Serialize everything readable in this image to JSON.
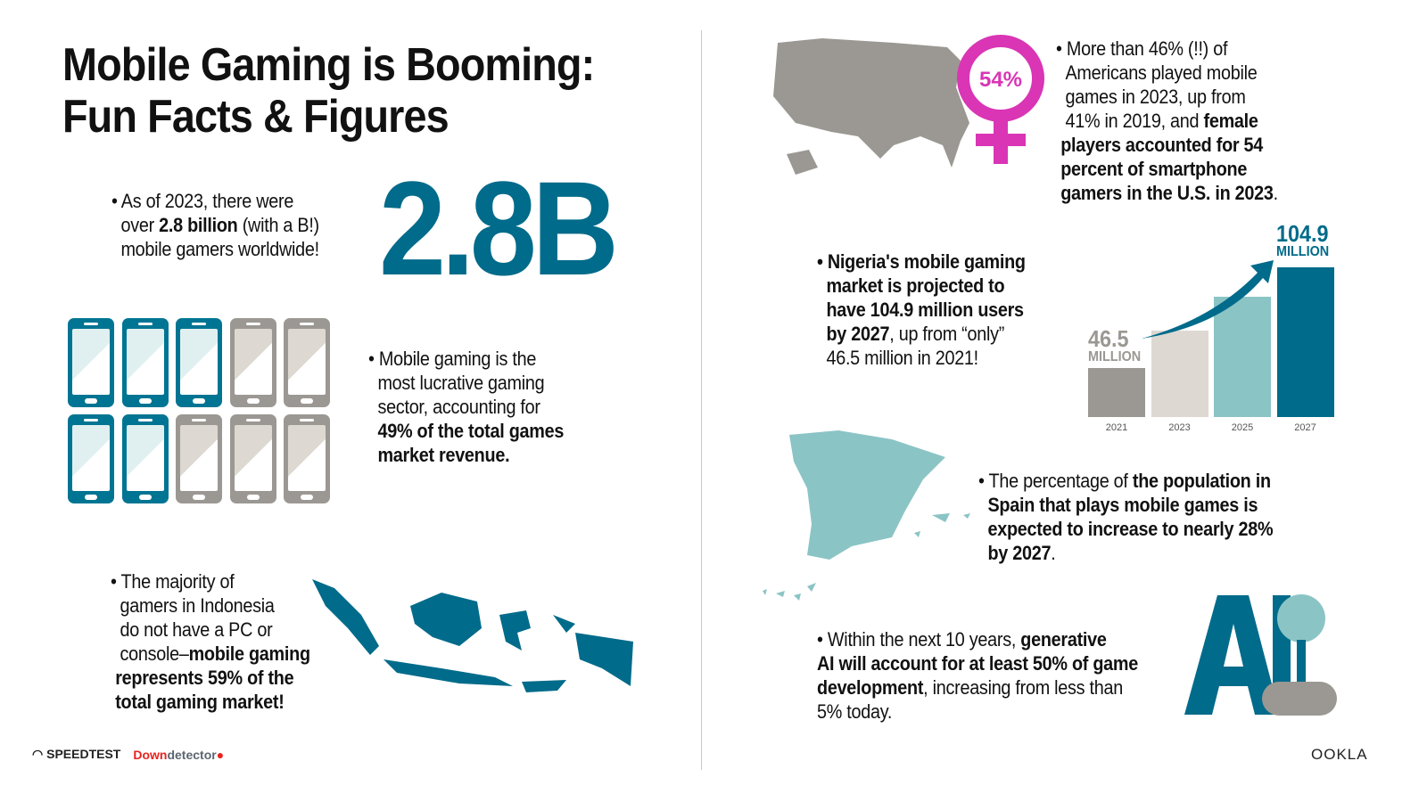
{
  "title": [
    "Mobile Gaming is Booming:",
    "Fun Facts & Figures"
  ],
  "fact_gamers": {
    "pre": "• As of 2023, there were",
    "over": "over ",
    "bold": "2.8 billion",
    "post": " (with a B!)",
    "line3": "mobile gamers worldwide!",
    "big_number": "2.8B"
  },
  "fact_revenue": {
    "l1": "• Mobile gaming is the",
    "l2": "most lucrative gaming",
    "l3": "sector, accounting for",
    "b1": "49% of the total games",
    "b2": "market revenue.",
    "phones_highlighted": 5,
    "phones_total": 10
  },
  "fact_indonesia": {
    "l1": "• The majority of",
    "l2": "gamers in Indonesia",
    "l3": "do not have a PC or",
    "l4": "console–",
    "b4": "mobile gaming",
    "b5": "represents 59% of the",
    "b6": "total gaming market!"
  },
  "fact_us": {
    "l1": "• More than 46% (!!) of",
    "l2": "Americans played mobile",
    "l3": "games in 2023, up from",
    "l4": "41% in 2019, and ",
    "b4": "female",
    "b5": "players accounted for 54",
    "b6": "percent of smartphone",
    "b7": "gamers in the U.S. in 2023",
    "end": ".",
    "badge": "54%"
  },
  "fact_nigeria": {
    "b1": "• Nigeria's mobile gaming",
    "b2": "market is projected to",
    "b3": "have 104.9 million users",
    "b4": "by 2027",
    "l4": ", up from “only”",
    "l5": "46.5 million in 2021!"
  },
  "chart_data": {
    "type": "bar",
    "categories": [
      "2021",
      "2023",
      "2025",
      "2027"
    ],
    "values": [
      46.5,
      68,
      88,
      104.9
    ],
    "labels": [
      {
        "value": "46.5",
        "unit": "MILLION"
      },
      null,
      null,
      {
        "value": "104.9",
        "unit": "MILLION"
      }
    ],
    "ylim": [
      18,
      110
    ],
    "colors": [
      "#9b9893",
      "#ddd9d2",
      "#8bc4c5",
      "#006b8a"
    ]
  },
  "fact_spain": {
    "l1": "• The percentage of ",
    "b1": "the population in",
    "b2": "Spain that plays mobile games is",
    "b3": "expected to increase to nearly 28%",
    "b4": "by 2027",
    "end": "."
  },
  "fact_ai": {
    "l1": "• Within the next 10 years, ",
    "b1": "generative",
    "b2": "AI will account for at least 50% of game",
    "b3": "development",
    "l3": ", increasing from less than",
    "l4": "5% today.",
    "logo": "AI"
  },
  "footer": {
    "speedtest": "SPEEDTEST",
    "down": "Down",
    "detector": "detector",
    "ookla": "OOKLA"
  },
  "colors": {
    "teal": "#006b8a",
    "light_teal": "#8bc4c5",
    "gray": "#9b9893",
    "magenta": "#d935b5"
  }
}
